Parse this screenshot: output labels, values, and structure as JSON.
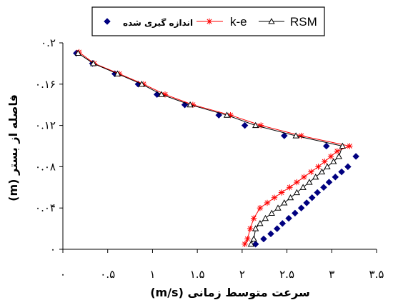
{
  "chart_data": {
    "type": "line",
    "xlabel": "سرعت متوسط زمانی (m/s)",
    "ylabel": "فاصله از بستر (m)",
    "xlim": [
      0,
      3.5
    ],
    "ylim": [
      0,
      0.2
    ],
    "x_ticks": [
      0,
      0.5,
      1,
      1.5,
      2,
      2.5,
      3,
      3.5
    ],
    "x_tick_labels": [
      "۰",
      "۰.۵",
      "۱",
      "۱.۵",
      "۲",
      "۲.۵",
      "۳",
      "۳.۵"
    ],
    "y_ticks": [
      0,
      0.04,
      0.08,
      0.12,
      0.16,
      0.2
    ],
    "y_tick_labels": [
      "۰",
      "۰.۰۴",
      "۰.۰۸",
      "۰.۱۲",
      "۰.۱۶",
      "۰.۲"
    ],
    "grid": false,
    "legend_position": "top",
    "series": [
      {
        "name": "اندازه گیری شده",
        "marker": "diamond",
        "line": false,
        "color": "#000080",
        "points": [
          [
            0.15,
            0.19
          ],
          [
            0.33,
            0.18
          ],
          [
            0.58,
            0.17
          ],
          [
            0.84,
            0.16
          ],
          [
            1.05,
            0.15
          ],
          [
            1.36,
            0.14
          ],
          [
            1.74,
            0.13
          ],
          [
            2.03,
            0.12
          ],
          [
            2.47,
            0.11
          ],
          [
            2.94,
            0.1
          ],
          [
            3.27,
            0.09
          ],
          [
            3.18,
            0.08
          ],
          [
            3.11,
            0.075
          ],
          [
            3.04,
            0.07
          ],
          [
            2.97,
            0.065
          ],
          [
            2.91,
            0.06
          ],
          [
            2.84,
            0.055
          ],
          [
            2.78,
            0.05
          ],
          [
            2.72,
            0.045
          ],
          [
            2.66,
            0.04
          ],
          [
            2.59,
            0.035
          ],
          [
            2.52,
            0.03
          ],
          [
            2.45,
            0.025
          ],
          [
            2.39,
            0.02
          ],
          [
            2.32,
            0.015
          ],
          [
            2.24,
            0.01
          ],
          [
            2.15,
            0.005
          ]
        ]
      },
      {
        "name": "k-e",
        "marker": "asterisk",
        "line": true,
        "color": "#ff0000",
        "points": [
          [
            0.18,
            0.191
          ],
          [
            0.35,
            0.18
          ],
          [
            0.63,
            0.17
          ],
          [
            0.9,
            0.16
          ],
          [
            1.14,
            0.15
          ],
          [
            1.45,
            0.14
          ],
          [
            1.87,
            0.13
          ],
          [
            2.21,
            0.12
          ],
          [
            2.66,
            0.11
          ],
          [
            3.2,
            0.1
          ],
          [
            3.06,
            0.095
          ],
          [
            2.99,
            0.09
          ],
          [
            2.92,
            0.085
          ],
          [
            2.85,
            0.08
          ],
          [
            2.77,
            0.075
          ],
          [
            2.69,
            0.07
          ],
          [
            2.61,
            0.065
          ],
          [
            2.53,
            0.06
          ],
          [
            2.44,
            0.055
          ],
          [
            2.36,
            0.05
          ],
          [
            2.28,
            0.045
          ],
          [
            2.2,
            0.04
          ],
          [
            2.13,
            0.03
          ],
          [
            2.09,
            0.02
          ],
          [
            2.06,
            0.01
          ],
          [
            2.03,
            0.005
          ]
        ]
      },
      {
        "name": "RSM",
        "marker": "triangle",
        "line": true,
        "color": "#000000",
        "points": [
          [
            0.17,
            0.19
          ],
          [
            0.34,
            0.18
          ],
          [
            0.61,
            0.17
          ],
          [
            0.88,
            0.16
          ],
          [
            1.1,
            0.15
          ],
          [
            1.42,
            0.14
          ],
          [
            1.83,
            0.13
          ],
          [
            2.15,
            0.12
          ],
          [
            2.6,
            0.11
          ],
          [
            3.12,
            0.1
          ],
          [
            3.08,
            0.09
          ],
          [
            3.02,
            0.085
          ],
          [
            2.95,
            0.08
          ],
          [
            2.89,
            0.075
          ],
          [
            2.82,
            0.07
          ],
          [
            2.75,
            0.065
          ],
          [
            2.68,
            0.06
          ],
          [
            2.61,
            0.055
          ],
          [
            2.54,
            0.05
          ],
          [
            2.47,
            0.045
          ],
          [
            2.4,
            0.04
          ],
          [
            2.33,
            0.035
          ],
          [
            2.26,
            0.03
          ],
          [
            2.2,
            0.025
          ],
          [
            2.15,
            0.02
          ],
          [
            2.13,
            0.01
          ],
          [
            2.1,
            0.005
          ]
        ]
      }
    ]
  }
}
